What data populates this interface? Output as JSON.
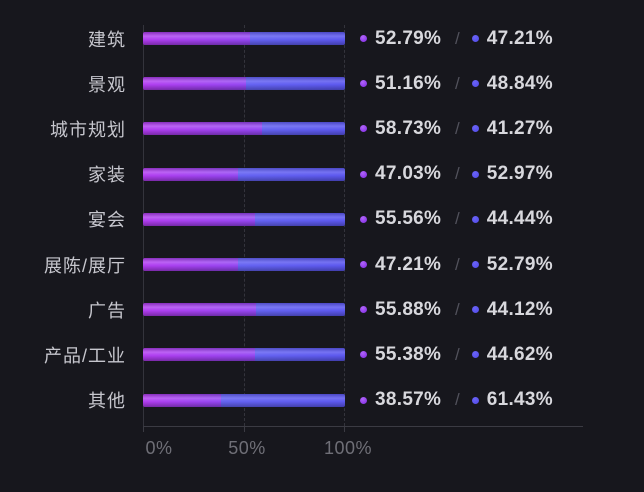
{
  "chart_data": {
    "type": "bar",
    "orientation": "horizontal",
    "stacked": true,
    "title": "",
    "xlabel": "",
    "ylabel": "",
    "xlim": [
      0,
      100
    ],
    "xtick_labels": [
      "0%",
      "50%",
      "100%"
    ],
    "grid": {
      "vertical_dashed_at_percent": [
        50,
        100
      ],
      "y_axis_line": true,
      "x_axis_line": true
    },
    "legend_position": "none",
    "value_separator": "/",
    "series_colors": {
      "left": "#a13cf0",
      "right": "#5b58ef"
    },
    "categories": [
      "建筑",
      "景观",
      "城市规划",
      "家装",
      "宴会",
      "展陈/展厅",
      "广告",
      "产品/工业",
      "其他"
    ],
    "series": [
      {
        "name": "left-segment",
        "color": "#9f3ef0",
        "values": [
          52.79,
          51.16,
          58.73,
          47.03,
          55.56,
          47.21,
          55.88,
          55.38,
          38.57
        ]
      },
      {
        "name": "right-segment",
        "color": "#5b58ef",
        "values": [
          47.21,
          48.84,
          41.27,
          52.97,
          44.44,
          52.79,
          44.12,
          44.62,
          61.43
        ]
      }
    ],
    "rows": [
      {
        "category": "建筑",
        "left_value": 52.79,
        "right_value": 47.21,
        "left_text": "52.79%",
        "right_text": "47.21%"
      },
      {
        "category": "景观",
        "left_value": 51.16,
        "right_value": 48.84,
        "left_text": "51.16%",
        "right_text": "48.84%"
      },
      {
        "category": "城市规划",
        "left_value": 58.73,
        "right_value": 41.27,
        "left_text": "58.73%",
        "right_text": "41.27%"
      },
      {
        "category": "家装",
        "left_value": 47.03,
        "right_value": 52.97,
        "left_text": "47.03%",
        "right_text": "52.97%"
      },
      {
        "category": "宴会",
        "left_value": 55.56,
        "right_value": 44.44,
        "left_text": "55.56%",
        "right_text": "44.44%"
      },
      {
        "category": "展陈/展厅",
        "left_value": 47.21,
        "right_value": 52.79,
        "left_text": "47.21%",
        "right_text": "52.79%"
      },
      {
        "category": "广告",
        "left_value": 55.88,
        "right_value": 44.12,
        "left_text": "55.88%",
        "right_text": "44.12%"
      },
      {
        "category": "产品/工业",
        "left_value": 55.38,
        "right_value": 44.62,
        "left_text": "55.38%",
        "right_text": "44.62%"
      },
      {
        "category": "其他",
        "left_value": 38.57,
        "right_value": 61.43,
        "left_text": "38.57%",
        "right_text": "61.43%"
      }
    ],
    "colors": {
      "background": "#17171d",
      "category_label": "#c6c6cd",
      "value_label": "#d8d8dd",
      "separator": "#52525c",
      "axis_label": "#6f6f77",
      "grid_line": "#34343c"
    }
  }
}
